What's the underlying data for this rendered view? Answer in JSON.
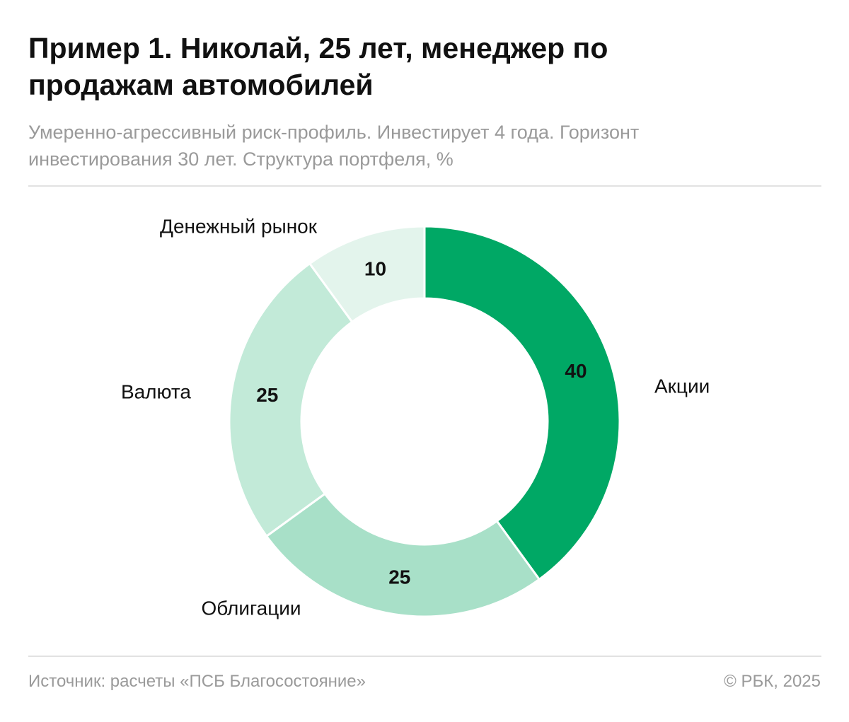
{
  "chart_data": {
    "type": "donut",
    "title": "Пример 1. Николай, 25 лет, менеджер по продажам автомобилей",
    "subtitle": "Умеренно-агрессивный риск-профиль. Инвестирует 4 года. Горизонт инвестирования 30 лет. Структура портфеля, %",
    "categories": [
      "Акции",
      "Облигации",
      "Валюта",
      "Денежный рынок"
    ],
    "values": [
      40,
      25,
      25,
      10
    ],
    "colors": [
      "#00a865",
      "#a8e0c8",
      "#c2ead8",
      "#e3f4ec"
    ],
    "source": "Источник: расчеты «ПСБ Благосостояние»",
    "copyright": "© РБК, 2025"
  }
}
